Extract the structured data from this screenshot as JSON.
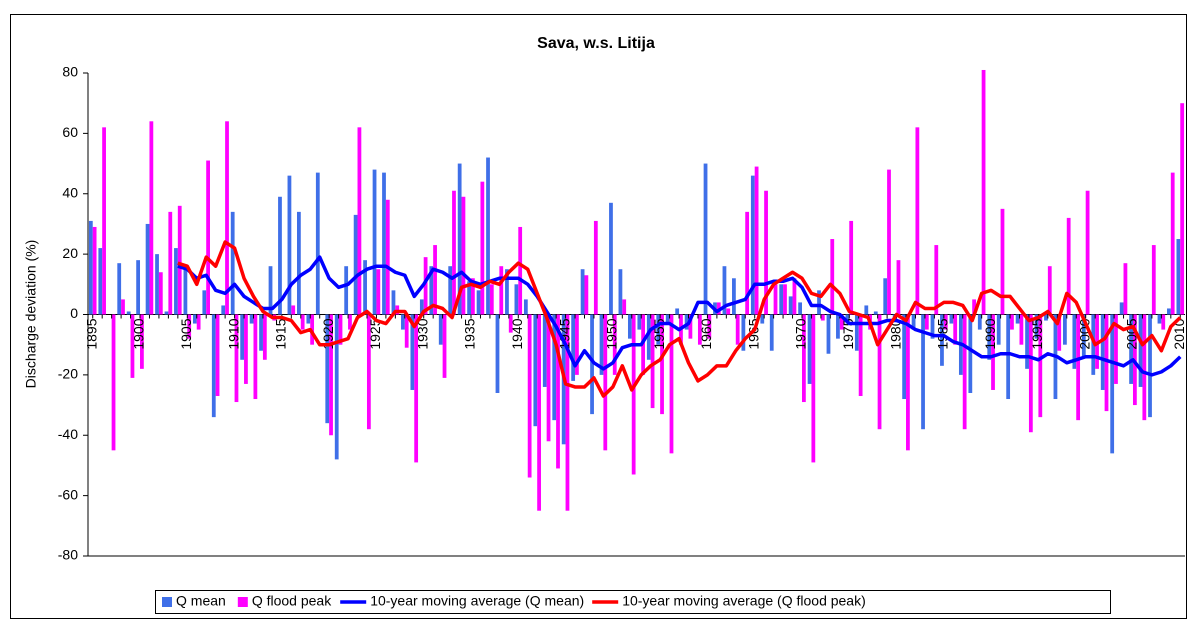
{
  "chart_data": {
    "type": "bar",
    "title": "Sava, w.s. Litija",
    "y_label": "Discharge deviation (%)",
    "categories": [
      "1895",
      null,
      null,
      null,
      null,
      "1900",
      null,
      null,
      null,
      null,
      "1905",
      null,
      null,
      null,
      null,
      "1910",
      null,
      null,
      null,
      null,
      "1915",
      null,
      null,
      null,
      null,
      "1920",
      null,
      null,
      null,
      null,
      "1925",
      null,
      null,
      null,
      null,
      "1930",
      null,
      null,
      null,
      null,
      "1935",
      null,
      null,
      null,
      null,
      "1940",
      null,
      null,
      null,
      null,
      "1945",
      null,
      null,
      null,
      null,
      "1950",
      null,
      null,
      null,
      null,
      "1955",
      null,
      null,
      null,
      null,
      "1960",
      null,
      null,
      null,
      null,
      "1965",
      null,
      null,
      null,
      null,
      "1970",
      null,
      null,
      null,
      null,
      "1975",
      null,
      null,
      null,
      null,
      "1980",
      null,
      null,
      null,
      null,
      "1985",
      null,
      null,
      null,
      null,
      "1990",
      null,
      null,
      null,
      null,
      "1995",
      null,
      null,
      null,
      null,
      "2000",
      null,
      null,
      null,
      null,
      "2005",
      null,
      null,
      null,
      null,
      "2010"
    ],
    "ylim": [
      -80,
      80
    ],
    "yticks": [
      -80,
      -60,
      -40,
      -20,
      0,
      20,
      40,
      60,
      80
    ],
    "legend": "bottom",
    "series": [
      {
        "name": "Q mean",
        "type": "bar",
        "color": "#3f6fe8",
        "values": [
          31,
          22,
          0,
          17,
          1,
          18,
          30,
          20,
          1,
          22,
          15,
          -3,
          8,
          -34,
          3,
          34,
          -15,
          -3,
          -12,
          16,
          39,
          46,
          34,
          -3,
          47,
          -36,
          -48,
          16,
          33,
          18,
          48,
          47,
          8,
          -5,
          -25,
          5,
          16,
          -10,
          16,
          50,
          11,
          8,
          52,
          -26,
          15,
          10,
          5,
          -37,
          -24,
          -35,
          -43,
          -22,
          15,
          -33,
          -20,
          37,
          15,
          -8,
          -5,
          -15,
          -10,
          -3,
          2,
          -5,
          0,
          50,
          4,
          16,
          12,
          -12,
          46,
          -3,
          -12,
          10,
          6,
          4,
          -23,
          8,
          -13,
          -8,
          -3,
          -12,
          3,
          1,
          12,
          -2,
          -28,
          -5,
          -38,
          -8,
          -17,
          -3,
          -20,
          -26,
          -5,
          -15,
          -10,
          -28,
          -3,
          -18,
          -8,
          -2,
          -28,
          -10,
          -18,
          -14,
          -20,
          -25,
          -46,
          4,
          -23,
          -24,
          -34,
          -3,
          2,
          25
        ]
      },
      {
        "name": "Q flood peak",
        "type": "bar",
        "color": "#ff00ff",
        "values": [
          29,
          62,
          -45,
          5,
          -21,
          -18,
          64,
          14,
          34,
          36,
          -8,
          -5,
          51,
          -27,
          64,
          -29,
          -23,
          -28,
          -15,
          -2,
          0,
          3,
          -5,
          -10,
          0,
          -40,
          -10,
          -5,
          62,
          -38,
          15,
          38,
          3,
          -11,
          -49,
          19,
          23,
          -21,
          41,
          39,
          12,
          44,
          10,
          16,
          -6,
          29,
          -54,
          -65,
          -42,
          -51,
          -65,
          -20,
          13,
          31,
          -45,
          -20,
          5,
          -53,
          -20,
          -31,
          -33,
          -46,
          -10,
          -8,
          -10,
          -8,
          4,
          2,
          -10,
          34,
          49,
          41,
          10,
          10,
          12,
          -29,
          -49,
          -2,
          25,
          -5,
          31,
          -27,
          -5,
          -38,
          48,
          18,
          -45,
          62,
          -5,
          23,
          -5,
          -10,
          -38,
          5,
          81,
          -25,
          35,
          -5,
          -10,
          -39,
          -34,
          16,
          -12,
          32,
          -35,
          41,
          -18,
          -32,
          -23,
          17,
          -30,
          -35,
          23,
          -5,
          47,
          70
        ]
      },
      {
        "name": "10-year moving average (Q mean)",
        "type": "line",
        "color": "#0000ff",
        "values": [
          null,
          null,
          null,
          null,
          null,
          null,
          null,
          null,
          null,
          16,
          15,
          12,
          13,
          8,
          7,
          10,
          6,
          4,
          2,
          2,
          5,
          10,
          13,
          15,
          19,
          12,
          9,
          10,
          13,
          15,
          16,
          16,
          14,
          13,
          6,
          10,
          15,
          14,
          12,
          14,
          11,
          10,
          11,
          12,
          12,
          12,
          10,
          6,
          1,
          -4,
          -10,
          -17,
          -12,
          -16,
          -18,
          -16,
          -11,
          -10,
          -10,
          -5,
          -3,
          -3,
          -5,
          -3,
          4,
          4,
          1,
          3,
          4,
          5,
          10,
          10,
          11,
          11,
          12,
          9,
          3,
          3,
          1,
          0,
          -3,
          -3,
          -3,
          -3,
          -2,
          -2,
          -3,
          -5,
          -6,
          -7,
          -7,
          -9,
          -10,
          -12,
          -14,
          -14,
          -13,
          -13,
          -14,
          -14,
          -15,
          -13,
          -14,
          -16,
          -15,
          -14,
          -14,
          -15,
          -16,
          -17,
          -15,
          -19,
          -20,
          -19,
          -17,
          -14
        ]
      },
      {
        "name": "10-year moving average (Q flood peak)",
        "type": "line",
        "color": "#ff0000",
        "values": [
          null,
          null,
          null,
          null,
          null,
          null,
          null,
          null,
          null,
          17,
          16,
          10,
          19,
          16,
          24,
          22,
          12,
          6,
          1,
          -1,
          -1,
          -2,
          -6,
          -5,
          -10,
          -10,
          -9,
          -8,
          -1,
          1,
          -2,
          -3,
          1,
          1,
          -4,
          1,
          3,
          2,
          -1,
          9,
          10,
          9,
          11,
          10,
          14,
          17,
          15,
          7,
          -1,
          -10,
          -23,
          -24,
          -24,
          -21,
          -27,
          -24,
          -17,
          -25,
          -20,
          -17,
          -15,
          -10,
          -8,
          -16,
          -22,
          -20,
          -17,
          -17,
          -12,
          -8,
          -5,
          5,
          10,
          12,
          14,
          12,
          7,
          6,
          10,
          7,
          1,
          0,
          -1,
          -10,
          -5,
          0,
          -2,
          4,
          2,
          2,
          4,
          4,
          3,
          -2,
          7,
          8,
          6,
          6,
          2,
          -2,
          -1,
          1,
          -3,
          7,
          4,
          -3,
          -10,
          -8,
          -3,
          -5,
          -4,
          -10,
          -7,
          -12,
          -4,
          -1
        ]
      }
    ]
  }
}
